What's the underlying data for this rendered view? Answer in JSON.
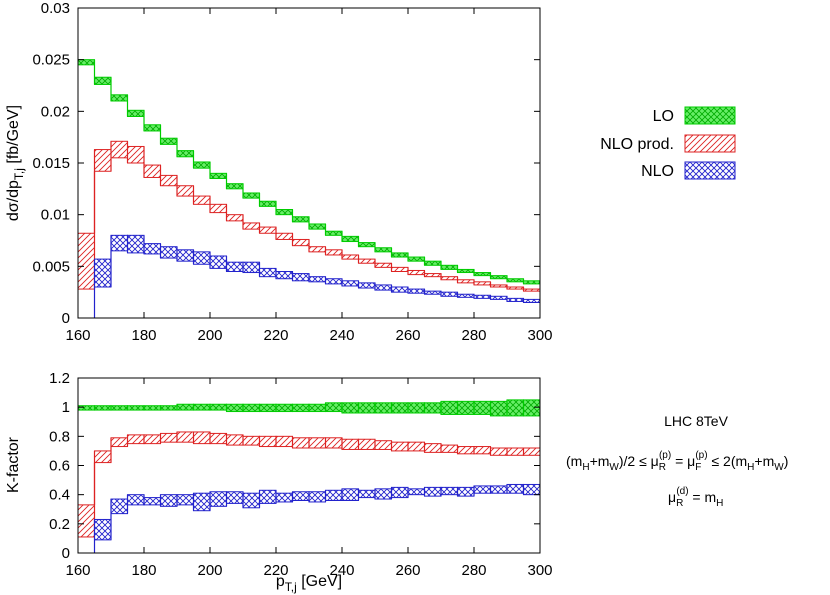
{
  "chart_data": [
    {
      "type": "area",
      "panel": "top",
      "ylabel": "dσ/dp",
      "ylabel_sub": "T,j",
      "ylabel_unit": " [fb/GeV]",
      "xlim": [
        160,
        300
      ],
      "ylim": [
        0,
        0.03
      ],
      "x_ticks": [
        "160",
        "180",
        "200",
        "220",
        "240",
        "260",
        "280",
        "300"
      ],
      "y_ticks": [
        "0",
        "0.005",
        "0.01",
        "0.015",
        "0.02",
        "0.025",
        "0.03"
      ],
      "grid": false,
      "legend_position": "right",
      "bin_edges": [
        160,
        165,
        170,
        175,
        180,
        185,
        190,
        195,
        200,
        205,
        210,
        215,
        220,
        225,
        230,
        235,
        240,
        245,
        250,
        255,
        260,
        265,
        270,
        275,
        280,
        285,
        290,
        295,
        300
      ],
      "series": [
        {
          "name": "LO",
          "color": "#00cc00",
          "fill": "#66ee66",
          "pattern": "crosshatch",
          "lower": [
            0.0245,
            0.0226,
            0.021,
            0.0195,
            0.0181,
            0.0168,
            0.0156,
            0.0145,
            0.0135,
            0.0125,
            0.0116,
            0.0108,
            0.01,
            0.0093,
            0.0086,
            0.008,
            0.0074,
            0.0069,
            0.0064,
            0.0059,
            0.0055,
            0.0051,
            0.0047,
            0.0044,
            0.0041,
            0.0038,
            0.0035,
            0.0033
          ],
          "upper": [
            0.025,
            0.0233,
            0.0216,
            0.0201,
            0.0187,
            0.0174,
            0.0162,
            0.0151,
            0.014,
            0.013,
            0.0121,
            0.0113,
            0.0105,
            0.0098,
            0.0091,
            0.0084,
            0.0079,
            0.0073,
            0.0068,
            0.0063,
            0.0059,
            0.0055,
            0.0051,
            0.0047,
            0.0044,
            0.0041,
            0.0038,
            0.0036
          ]
        },
        {
          "name": "NLO prod.",
          "color": "#dd2222",
          "fill": "#ffffff",
          "pattern": "diagonal",
          "lower": [
            0.0028,
            0.0142,
            0.0155,
            0.015,
            0.0136,
            0.0128,
            0.0118,
            0.011,
            0.0102,
            0.0094,
            0.0086,
            0.0082,
            0.0076,
            0.007,
            0.0064,
            0.0061,
            0.0057,
            0.0053,
            0.0049,
            0.0045,
            0.0042,
            0.004,
            0.0037,
            0.0034,
            0.0032,
            0.003,
            0.0028,
            0.0026
          ],
          "upper": [
            0.0082,
            0.0163,
            0.0171,
            0.0166,
            0.0148,
            0.0138,
            0.0128,
            0.0118,
            0.011,
            0.01,
            0.0092,
            0.0088,
            0.0082,
            0.0076,
            0.0069,
            0.0066,
            0.0061,
            0.0057,
            0.0053,
            0.0049,
            0.0046,
            0.0043,
            0.004,
            0.0037,
            0.0035,
            0.0032,
            0.003,
            0.0028
          ]
        },
        {
          "name": "NLO",
          "color": "#2222cc",
          "fill": "#ffffff",
          "pattern": "crosshatch",
          "lower": [
            0.0,
            0.003,
            0.0065,
            0.0063,
            0.0062,
            0.0058,
            0.0055,
            0.0052,
            0.0048,
            0.0045,
            0.0044,
            0.004,
            0.0038,
            0.0036,
            0.0035,
            0.0033,
            0.0031,
            0.0029,
            0.0027,
            0.0025,
            0.0024,
            0.0023,
            0.0021,
            0.002,
            0.0019,
            0.0018,
            0.0016,
            0.0015
          ],
          "upper": [
            0.0,
            0.0057,
            0.008,
            0.008,
            0.0072,
            0.0069,
            0.0066,
            0.0064,
            0.006,
            0.0054,
            0.0054,
            0.0048,
            0.0045,
            0.0043,
            0.004,
            0.0038,
            0.0036,
            0.0034,
            0.0032,
            0.003,
            0.0028,
            0.0026,
            0.0025,
            0.0023,
            0.0022,
            0.0021,
            0.0019,
            0.0018
          ]
        }
      ]
    },
    {
      "type": "area",
      "panel": "bottom",
      "ylabel": "K-factor",
      "xlabel": "p",
      "xlabel_sub": "T,j",
      "xlabel_unit": " [GeV]",
      "xlim": [
        160,
        300
      ],
      "ylim": [
        0,
        1.2
      ],
      "x_ticks": [
        "160",
        "180",
        "200",
        "220",
        "240",
        "260",
        "280",
        "300"
      ],
      "y_ticks": [
        "0",
        "0.2",
        "0.4",
        "0.6",
        "0.8",
        "1",
        "1.2"
      ],
      "grid": false,
      "bin_edges": [
        160,
        165,
        170,
        175,
        180,
        185,
        190,
        195,
        200,
        205,
        210,
        215,
        220,
        225,
        230,
        235,
        240,
        245,
        250,
        255,
        260,
        265,
        270,
        275,
        280,
        285,
        290,
        295,
        300
      ],
      "series": [
        {
          "name": "LO",
          "color": "#00cc00",
          "fill": "#66ee66",
          "pattern": "crosshatch",
          "lower": [
            0.98,
            0.98,
            0.98,
            0.98,
            0.98,
            0.98,
            0.98,
            0.98,
            0.98,
            0.97,
            0.97,
            0.97,
            0.97,
            0.97,
            0.97,
            0.97,
            0.96,
            0.96,
            0.96,
            0.96,
            0.96,
            0.96,
            0.95,
            0.95,
            0.95,
            0.94,
            0.94,
            0.94
          ],
          "upper": [
            1.01,
            1.01,
            1.01,
            1.01,
            1.01,
            1.01,
            1.02,
            1.02,
            1.02,
            1.02,
            1.02,
            1.02,
            1.02,
            1.02,
            1.02,
            1.03,
            1.03,
            1.03,
            1.03,
            1.03,
            1.03,
            1.03,
            1.04,
            1.04,
            1.04,
            1.04,
            1.05,
            1.05
          ]
        },
        {
          "name": "NLO prod.",
          "color": "#dd2222",
          "fill": "#ffffff",
          "pattern": "diagonal",
          "lower": [
            0.11,
            0.62,
            0.73,
            0.75,
            0.75,
            0.76,
            0.76,
            0.75,
            0.75,
            0.74,
            0.74,
            0.73,
            0.73,
            0.72,
            0.72,
            0.72,
            0.71,
            0.71,
            0.71,
            0.7,
            0.7,
            0.69,
            0.69,
            0.68,
            0.68,
            0.67,
            0.67,
            0.67
          ],
          "upper": [
            0.33,
            0.7,
            0.79,
            0.81,
            0.81,
            0.82,
            0.83,
            0.83,
            0.82,
            0.81,
            0.8,
            0.8,
            0.8,
            0.79,
            0.79,
            0.79,
            0.78,
            0.78,
            0.77,
            0.76,
            0.76,
            0.75,
            0.74,
            0.73,
            0.73,
            0.72,
            0.72,
            0.72
          ]
        },
        {
          "name": "NLO",
          "color": "#2222cc",
          "fill": "#ffffff",
          "pattern": "crosshatch",
          "lower": [
            0.0,
            0.09,
            0.27,
            0.33,
            0.33,
            0.32,
            0.33,
            0.29,
            0.32,
            0.34,
            0.31,
            0.34,
            0.35,
            0.36,
            0.35,
            0.36,
            0.36,
            0.38,
            0.37,
            0.38,
            0.4,
            0.39,
            0.4,
            0.39,
            0.41,
            0.41,
            0.41,
            0.4
          ],
          "upper": [
            0.0,
            0.23,
            0.37,
            0.4,
            0.38,
            0.4,
            0.4,
            0.41,
            0.42,
            0.42,
            0.41,
            0.43,
            0.41,
            0.42,
            0.42,
            0.43,
            0.44,
            0.43,
            0.44,
            0.45,
            0.44,
            0.45,
            0.45,
            0.45,
            0.46,
            0.46,
            0.47,
            0.47
          ]
        }
      ]
    }
  ],
  "legend": {
    "items": [
      {
        "label": "LO",
        "color": "#00cc00",
        "fill": "#66ee66",
        "pattern": "crosshatch"
      },
      {
        "label": "NLO prod.",
        "color": "#dd2222",
        "fill": "#ffffff",
        "pattern": "diagonal"
      },
      {
        "label": "NLO",
        "color": "#2222cc",
        "fill": "#ffffff",
        "pattern": "crosshatch"
      }
    ]
  },
  "annotation": {
    "line1": "LHC 8TeV",
    "line2_main": "(m",
    "line2_sub1": "H",
    "line2_mid1": "+m",
    "line2_sub2": "W",
    "line2_mid2": ")/2 ≤ μ",
    "line2_sub3": "R",
    "line2_sup3": "(p)",
    "line2_mid3": " = μ",
    "line2_sub4": "F",
    "line2_sup4": "(p)",
    "line2_mid4": " ≤ 2(m",
    "line2_sub5": "H",
    "line2_mid5": "+m",
    "line2_sub6": "W",
    "line2_end": ")",
    "line3_main": "μ",
    "line3_sub": "R",
    "line3_sup": "(d)",
    "line3_rest": " = m",
    "line3_sub2": "H"
  }
}
